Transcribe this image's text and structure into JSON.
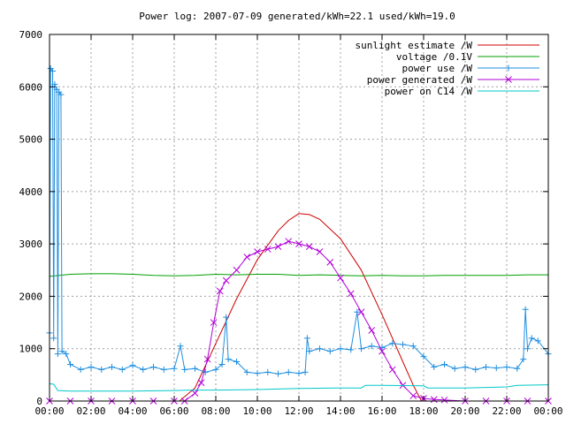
{
  "chart_data": {
    "type": "line",
    "title": "Power log: 2007-07-09 generated/kWh=22.1 used/kWh=19.0",
    "xlabel": "",
    "ylabel": "",
    "x_unit": "hour of day",
    "xlim": [
      0,
      24
    ],
    "ylim": [
      0,
      7000
    ],
    "x_ticks": [
      0,
      2,
      4,
      6,
      8,
      10,
      12,
      14,
      16,
      18,
      20,
      22,
      24
    ],
    "x_tick_labels": [
      "00:00",
      "02:00",
      "04:00",
      "06:00",
      "08:00",
      "10:00",
      "12:00",
      "14:00",
      "16:00",
      "18:00",
      "20:00",
      "22:00",
      "00:00"
    ],
    "y_ticks": [
      0,
      1000,
      2000,
      3000,
      4000,
      5000,
      6000,
      7000
    ],
    "y_tick_labels": [
      "0",
      "1000",
      "2000",
      "3000",
      "4000",
      "5000",
      "6000",
      "7000"
    ],
    "grid": true,
    "legend_position": "top-right",
    "series": [
      {
        "name": "sunlight estimate /W",
        "color": "#cc0000",
        "marker": "none",
        "points": [
          [
            6.25,
            0
          ],
          [
            7,
            250
          ],
          [
            8,
            1100
          ],
          [
            9,
            1950
          ],
          [
            10,
            2700
          ],
          [
            11,
            3250
          ],
          [
            11.5,
            3450
          ],
          [
            12,
            3580
          ],
          [
            12.5,
            3560
          ],
          [
            13,
            3470
          ],
          [
            14,
            3100
          ],
          [
            15,
            2500
          ],
          [
            16,
            1650
          ],
          [
            17,
            750
          ],
          [
            17.5,
            300
          ],
          [
            17.9,
            0
          ]
        ]
      },
      {
        "name": "voltage /0.1V",
        "color": "#00a000",
        "marker": "none",
        "points": [
          [
            0,
            2380
          ],
          [
            1,
            2420
          ],
          [
            2,
            2430
          ],
          [
            3,
            2430
          ],
          [
            4,
            2420
          ],
          [
            5,
            2400
          ],
          [
            6,
            2390
          ],
          [
            7,
            2400
          ],
          [
            8,
            2420
          ],
          [
            9,
            2410
          ],
          [
            10,
            2420
          ],
          [
            11,
            2420
          ],
          [
            12,
            2400
          ],
          [
            13,
            2410
          ],
          [
            14,
            2400
          ],
          [
            15,
            2390
          ],
          [
            16,
            2400
          ],
          [
            17,
            2390
          ],
          [
            18,
            2390
          ],
          [
            19,
            2400
          ],
          [
            20,
            2400
          ],
          [
            21,
            2400
          ],
          [
            22,
            2400
          ],
          [
            23,
            2410
          ],
          [
            24,
            2410
          ]
        ]
      },
      {
        "name": "power use /W",
        "color": "#1f8fe0",
        "marker": "plus",
        "points": [
          [
            0,
            1300
          ],
          [
            0.05,
            6350
          ],
          [
            0.15,
            6300
          ],
          [
            0.2,
            1200
          ],
          [
            0.25,
            6050
          ],
          [
            0.35,
            5950
          ],
          [
            0.4,
            900
          ],
          [
            0.45,
            5900
          ],
          [
            0.55,
            5850
          ],
          [
            0.6,
            950
          ],
          [
            0.8,
            900
          ],
          [
            1,
            700
          ],
          [
            1.5,
            600
          ],
          [
            2,
            650
          ],
          [
            2.5,
            600
          ],
          [
            3,
            650
          ],
          [
            3.5,
            600
          ],
          [
            4,
            680
          ],
          [
            4.5,
            600
          ],
          [
            5,
            650
          ],
          [
            5.5,
            600
          ],
          [
            6,
            620
          ],
          [
            6.3,
            1050
          ],
          [
            6.5,
            600
          ],
          [
            7,
            620
          ],
          [
            7.5,
            550
          ],
          [
            8,
            600
          ],
          [
            8.3,
            700
          ],
          [
            8.5,
            1600
          ],
          [
            8.6,
            800
          ],
          [
            9,
            750
          ],
          [
            9.5,
            550
          ],
          [
            10,
            530
          ],
          [
            10.5,
            550
          ],
          [
            11,
            520
          ],
          [
            11.5,
            550
          ],
          [
            12,
            530
          ],
          [
            12.3,
            550
          ],
          [
            12.4,
            1200
          ],
          [
            12.5,
            950
          ],
          [
            13,
            1000
          ],
          [
            13.5,
            950
          ],
          [
            14,
            1000
          ],
          [
            14.5,
            980
          ],
          [
            14.8,
            1700
          ],
          [
            15,
            1000
          ],
          [
            15.5,
            1050
          ],
          [
            16,
            1020
          ],
          [
            16.5,
            1100
          ],
          [
            17,
            1080
          ],
          [
            17.5,
            1050
          ],
          [
            18,
            850
          ],
          [
            18.5,
            650
          ],
          [
            19,
            700
          ],
          [
            19.5,
            620
          ],
          [
            20,
            650
          ],
          [
            20.5,
            600
          ],
          [
            21,
            650
          ],
          [
            21.5,
            630
          ],
          [
            22,
            650
          ],
          [
            22.5,
            620
          ],
          [
            22.8,
            800
          ],
          [
            22.9,
            1750
          ],
          [
            23,
            1000
          ],
          [
            23.2,
            1200
          ],
          [
            23.5,
            1150
          ],
          [
            24,
            900
          ]
        ]
      },
      {
        "name": "power generated /W",
        "color": "#b200d8",
        "marker": "cross",
        "points": [
          [
            0,
            0
          ],
          [
            1,
            0
          ],
          [
            2,
            0
          ],
          [
            3,
            0
          ],
          [
            4,
            0
          ],
          [
            5,
            0
          ],
          [
            6,
            0
          ],
          [
            6.5,
            0
          ],
          [
            7,
            150
          ],
          [
            7.3,
            350
          ],
          [
            7.6,
            800
          ],
          [
            7.9,
            1500
          ],
          [
            8.2,
            2100
          ],
          [
            8.5,
            2300
          ],
          [
            9,
            2500
          ],
          [
            9.5,
            2750
          ],
          [
            10,
            2850
          ],
          [
            10.5,
            2900
          ],
          [
            11,
            2950
          ],
          [
            11.5,
            3050
          ],
          [
            12,
            3000
          ],
          [
            12.5,
            2950
          ],
          [
            13,
            2850
          ],
          [
            13.5,
            2650
          ],
          [
            14,
            2350
          ],
          [
            14.5,
            2050
          ],
          [
            15,
            1700
          ],
          [
            15.5,
            1350
          ],
          [
            16,
            950
          ],
          [
            16.5,
            600
          ],
          [
            17,
            300
          ],
          [
            17.5,
            100
          ],
          [
            18,
            50
          ],
          [
            18.5,
            30
          ],
          [
            19,
            20
          ],
          [
            20,
            0
          ],
          [
            21,
            0
          ],
          [
            22,
            0
          ],
          [
            23,
            0
          ],
          [
            24,
            0
          ]
        ]
      },
      {
        "name": "power on C14 /W",
        "color": "#00c8c8",
        "marker": "none",
        "points": [
          [
            0,
            330
          ],
          [
            0.2,
            320
          ],
          [
            0.4,
            200
          ],
          [
            1,
            190
          ],
          [
            2,
            190
          ],
          [
            4,
            190
          ],
          [
            6,
            200
          ],
          [
            6.8,
            210
          ],
          [
            8,
            210
          ],
          [
            10,
            220
          ],
          [
            12,
            240
          ],
          [
            14,
            250
          ],
          [
            15,
            250
          ],
          [
            15.2,
            300
          ],
          [
            16,
            300
          ],
          [
            18,
            290
          ],
          [
            18.2,
            250
          ],
          [
            20,
            250
          ],
          [
            22,
            270
          ],
          [
            22.5,
            300
          ],
          [
            24,
            310
          ]
        ]
      }
    ]
  }
}
